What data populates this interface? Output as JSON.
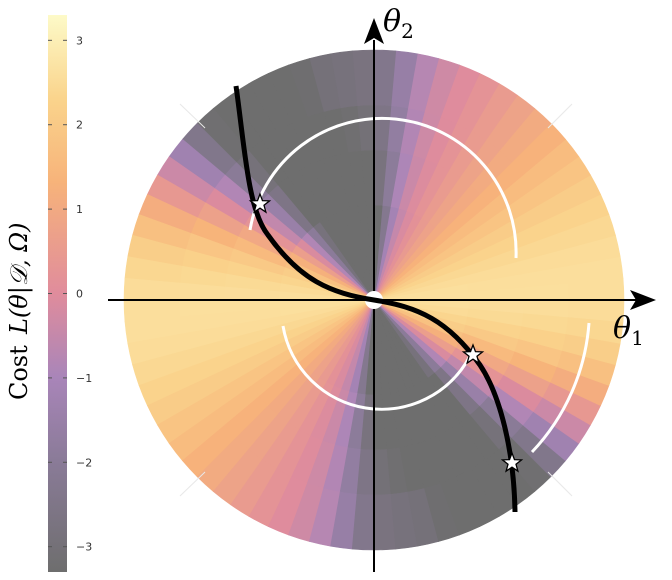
{
  "colorbar": {
    "label_word": "Cost",
    "label_math": "L(θ|𝒟, Ω)",
    "ticks": [
      "3",
      "2",
      "1",
      "0",
      "−1",
      "−2",
      "−3"
    ],
    "tick_values": [
      3,
      2,
      1,
      0,
      -1,
      -2,
      -3
    ],
    "range": [
      -3.3,
      3.3
    ]
  },
  "axes": {
    "x_label": "θ1",
    "y_label": "θ2"
  },
  "colors": {
    "map_low": "#6e6e6e",
    "map_mid_low": "#a07fb3",
    "map_mid": "#e28a9a",
    "map_mid_high": "#f9be74",
    "map_high": "#fdf7c5",
    "curve": "#000000",
    "arc": "#ffffff",
    "star_fill": "#ffffff",
    "axis": "#000000"
  },
  "markers": {
    "count": 3,
    "shape": "star"
  }
}
